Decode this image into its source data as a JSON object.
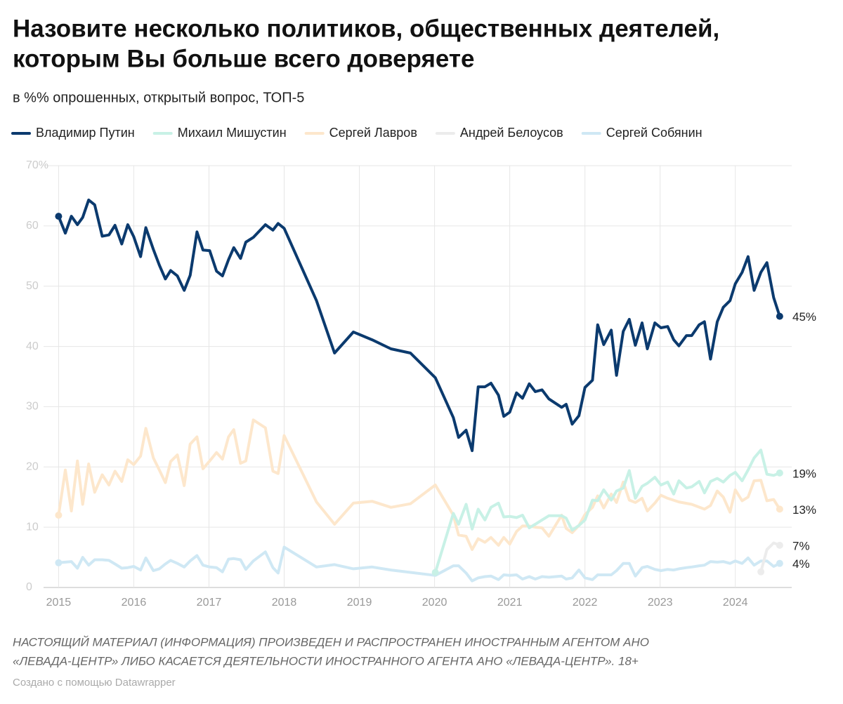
{
  "chart_data": {
    "type": "line",
    "title": [
      "Назовите несколько политиков, общественных деятелей,",
      "которым Вы больше всего доверяете"
    ],
    "subtitle": "в %% опрошенных, открытый вопрос, ТОП-5",
    "footnote": [
      "НАСТОЯЩИЙ МАТЕРИАЛ (ИНФОРМАЦИЯ) ПРОИЗВЕДЕН И РАСПРОСТРАНЕН ИНОСТРАННЫМ АГЕНТОМ АНО",
      "«ЛЕВАДА-ЦЕНТР» ЛИБО КАСАЕТСЯ ДЕЯТЕЛЬНОСТИ ИНОСТРАННОГО АГЕНТА АНО «ЛЕВАДА-ЦЕНТР». 18+"
    ],
    "credit": "Создано с помощью Datawrapper",
    "xlim": [
      2014.8,
      2024.75
    ],
    "xticks": [
      2015,
      2016,
      2017,
      2018,
      2019,
      2020,
      2021,
      2022,
      2023,
      2024
    ],
    "ylim": [
      0,
      70
    ],
    "yticks": [
      0,
      10,
      20,
      30,
      40,
      50,
      60,
      {
        "value": 70,
        "label": "70%"
      }
    ],
    "grid": true,
    "series": [
      {
        "name": "Владимир Путин",
        "color": "#0b3a6e",
        "end_label": "45%",
        "x": [
          2015.0,
          2015.09,
          2015.17,
          2015.25,
          2015.32,
          2015.4,
          2015.48,
          2015.58,
          2015.67,
          2015.75,
          2015.84,
          2015.92,
          2016.0,
          2016.09,
          2016.16,
          2016.26,
          2016.34,
          2016.42,
          2016.49,
          2016.58,
          2016.67,
          2016.75,
          2016.84,
          2016.92,
          2017.01,
          2017.1,
          2017.18,
          2017.26,
          2017.33,
          2017.42,
          2017.49,
          2017.59,
          2017.75,
          2017.85,
          2017.92,
          2018.0,
          2018.43,
          2018.67,
          2018.92,
          2019.17,
          2019.42,
          2019.68,
          2020.01,
          2020.25,
          2020.32,
          2020.42,
          2020.5,
          2020.58,
          2020.67,
          2020.75,
          2020.85,
          2020.92,
          2021.0,
          2021.09,
          2021.17,
          2021.26,
          2021.34,
          2021.43,
          2021.52,
          2021.69,
          2021.75,
          2021.83,
          2021.92,
          2022.0,
          2022.1,
          2022.17,
          2022.25,
          2022.35,
          2022.42,
          2022.51,
          2022.59,
          2022.67,
          2022.76,
          2022.83,
          2022.93,
          2023.01,
          2023.1,
          2023.18,
          2023.25,
          2023.35,
          2023.42,
          2023.52,
          2023.59,
          2023.67,
          2023.76,
          2023.84,
          2023.93,
          2024.0,
          2024.09,
          2024.17,
          2024.25,
          2024.34,
          2024.42,
          2024.51,
          2024.59
        ],
        "values": [
          61.6,
          58.8,
          61.6,
          60.2,
          61.4,
          64.3,
          63.5,
          58.3,
          58.5,
          60.1,
          57,
          60.2,
          58.2,
          54.9,
          59.7,
          56.1,
          53.5,
          51.2,
          52.6,
          51.7,
          49.3,
          51.8,
          59,
          56,
          55.9,
          52.5,
          51.7,
          54.4,
          56.4,
          54.6,
          57.3,
          58.1,
          60.2,
          59.3,
          60.4,
          59.6,
          47.6,
          38.9,
          42.4,
          41.1,
          39.6,
          38.9,
          34.8,
          28.2,
          24.9,
          26.1,
          22.7,
          33.3,
          33.3,
          33.9,
          31.9,
          28.4,
          29.1,
          32.3,
          31.4,
          33.8,
          32.5,
          32.8,
          31.3,
          29.9,
          30.4,
          27.1,
          28.5,
          33.2,
          34.4,
          43.6,
          40.3,
          42.7,
          35.2,
          42.5,
          44.5,
          40.2,
          43.9,
          39.6,
          43.9,
          43.1,
          43.3,
          41.1,
          40.1,
          41.8,
          41.8,
          43.6,
          44.1,
          37.9,
          44.1,
          46.5,
          47.6,
          50.4,
          52.3,
          54.9,
          49.3,
          52.3,
          53.9,
          48.1,
          45
        ]
      },
      {
        "name": "Михаил Мишустин",
        "color": "#c8f1e6",
        "end_label": "19%",
        "x": [
          2020.01,
          2020.25,
          2020.32,
          2020.42,
          2020.5,
          2020.58,
          2020.67,
          2020.75,
          2020.85,
          2020.92,
          2021.0,
          2021.09,
          2021.17,
          2021.26,
          2021.34,
          2021.43,
          2021.52,
          2021.69,
          2021.75,
          2021.83,
          2021.92,
          2022.0,
          2022.1,
          2022.17,
          2022.25,
          2022.35,
          2022.42,
          2022.51,
          2022.59,
          2022.67,
          2022.76,
          2022.83,
          2022.93,
          2023.01,
          2023.1,
          2023.18,
          2023.25,
          2023.35,
          2023.42,
          2023.52,
          2023.59,
          2023.67,
          2023.76,
          2023.84,
          2023.93,
          2024.0,
          2024.09,
          2024.17,
          2024.25,
          2024.34,
          2024.42,
          2024.51,
          2024.59
        ],
        "values": [
          2.5,
          12.3,
          10.5,
          13.8,
          9.7,
          13,
          11.2,
          13.3,
          14,
          11.7,
          11.8,
          11.6,
          12,
          9.9,
          10.5,
          11.2,
          11.9,
          11.9,
          11.5,
          9.5,
          10.3,
          11.2,
          14.5,
          14.4,
          16.2,
          14.5,
          16,
          16.5,
          19.4,
          14.8,
          16.8,
          17.3,
          18.3,
          17,
          17.5,
          15.5,
          17.7,
          16.5,
          16.7,
          17.6,
          15.7,
          17.6,
          18.1,
          17.5,
          18.6,
          19.1,
          17.7,
          19.5,
          21.5,
          22.8,
          18.8,
          18.6,
          19
        ]
      },
      {
        "name": "Сергей Лавров",
        "color": "#fde7cc",
        "end_label": "13%",
        "x": [
          2015.0,
          2015.09,
          2015.17,
          2015.25,
          2015.32,
          2015.4,
          2015.48,
          2015.58,
          2015.67,
          2015.75,
          2015.84,
          2015.92,
          2016.0,
          2016.09,
          2016.16,
          2016.26,
          2016.34,
          2016.42,
          2016.49,
          2016.58,
          2016.67,
          2016.75,
          2016.84,
          2016.92,
          2017.01,
          2017.1,
          2017.18,
          2017.26,
          2017.33,
          2017.42,
          2017.49,
          2017.59,
          2017.75,
          2017.85,
          2017.92,
          2018.0,
          2018.43,
          2018.67,
          2018.92,
          2019.17,
          2019.42,
          2019.68,
          2020.01,
          2020.25,
          2020.32,
          2020.42,
          2020.5,
          2020.58,
          2020.67,
          2020.75,
          2020.85,
          2020.92,
          2021.0,
          2021.09,
          2021.17,
          2021.26,
          2021.34,
          2021.43,
          2021.52,
          2021.69,
          2021.75,
          2021.83,
          2021.92,
          2022.0,
          2022.1,
          2022.17,
          2022.25,
          2022.35,
          2022.42,
          2022.51,
          2022.59,
          2022.67,
          2022.76,
          2022.83,
          2022.93,
          2023.01,
          2023.1,
          2023.25,
          2023.42,
          2023.59,
          2023.67,
          2023.76,
          2023.84,
          2023.93,
          2024.0,
          2024.09,
          2024.17,
          2024.25,
          2024.34,
          2024.42,
          2024.51,
          2024.59
        ],
        "values": [
          12,
          19.5,
          12.7,
          21,
          13.8,
          20.5,
          15.8,
          18.7,
          17,
          19.3,
          17.6,
          21.2,
          20.4,
          21.8,
          26.4,
          21.5,
          19.5,
          17.4,
          20.9,
          22,
          16.9,
          23.8,
          25,
          19.7,
          21,
          22.4,
          21.3,
          25,
          26.2,
          20.6,
          21,
          27.8,
          26.5,
          19.3,
          18.9,
          25.2,
          14.2,
          10.5,
          14,
          14.3,
          13.3,
          13.9,
          17,
          12,
          8.7,
          8.5,
          6.3,
          8.1,
          7.5,
          8.3,
          7,
          8.3,
          7.2,
          9.3,
          10.2,
          10.2,
          10,
          9.9,
          8.5,
          12,
          9.8,
          9.1,
          10.3,
          12.1,
          13.3,
          15.2,
          13.2,
          15.5,
          14.1,
          17.5,
          14.5,
          14.1,
          14.8,
          12.7,
          14,
          15.3,
          14.8,
          14.2,
          13.8,
          13,
          13.6,
          16,
          15,
          12.5,
          16.2,
          14.4,
          15,
          17.7,
          17.8,
          14.4,
          14.6,
          13
        ]
      },
      {
        "name": "Андрей Белоусов",
        "color": "#ececec",
        "end_label": "7%",
        "x": [
          2024.34,
          2024.42,
          2024.51,
          2024.59
        ],
        "values": [
          2.6,
          6.3,
          7.4,
          7
        ]
      },
      {
        "name": "Сергей Собянин",
        "color": "#cfe8f4",
        "end_label": "4%",
        "x": [
          2015.0,
          2015.09,
          2015.17,
          2015.25,
          2015.32,
          2015.4,
          2015.48,
          2015.58,
          2015.67,
          2015.75,
          2015.84,
          2015.92,
          2016.0,
          2016.09,
          2016.16,
          2016.26,
          2016.34,
          2016.42,
          2016.49,
          2016.58,
          2016.67,
          2016.75,
          2016.84,
          2016.92,
          2017.01,
          2017.1,
          2017.18,
          2017.26,
          2017.33,
          2017.42,
          2017.49,
          2017.59,
          2017.75,
          2017.85,
          2017.92,
          2018.0,
          2018.43,
          2018.67,
          2018.92,
          2019.17,
          2019.42,
          2019.68,
          2020.01,
          2020.25,
          2020.32,
          2020.42,
          2020.5,
          2020.58,
          2020.67,
          2020.75,
          2020.85,
          2020.92,
          2021.0,
          2021.09,
          2021.17,
          2021.26,
          2021.34,
          2021.43,
          2021.52,
          2021.69,
          2021.75,
          2021.83,
          2021.92,
          2022.0,
          2022.1,
          2022.17,
          2022.25,
          2022.35,
          2022.42,
          2022.51,
          2022.59,
          2022.67,
          2022.76,
          2022.83,
          2022.93,
          2023.01,
          2023.1,
          2023.18,
          2023.25,
          2023.35,
          2023.42,
          2023.52,
          2023.59,
          2023.67,
          2023.76,
          2023.84,
          2023.93,
          2024.0,
          2024.09,
          2024.17,
          2024.25,
          2024.34,
          2024.42,
          2024.51,
          2024.59
        ],
        "values": [
          4.1,
          4.2,
          4.3,
          3.2,
          5,
          3.7,
          4.6,
          4.6,
          4.5,
          3.9,
          3.2,
          3.3,
          3.5,
          2.9,
          4.9,
          2.8,
          3.1,
          3.9,
          4.5,
          4,
          3.4,
          4.4,
          5.3,
          3.7,
          3.4,
          3.3,
          2.6,
          4.7,
          4.8,
          4.6,
          3,
          4.4,
          5.9,
          3.3,
          2.4,
          6.7,
          3.4,
          3.8,
          3.1,
          3.4,
          2.9,
          2.5,
          2,
          3.6,
          3.6,
          2.4,
          1.1,
          1.6,
          1.8,
          1.9,
          1.3,
          2.1,
          2,
          2.1,
          1.4,
          1.8,
          1.4,
          1.8,
          1.7,
          1.9,
          1.4,
          1.6,
          2.9,
          1.6,
          1.3,
          2.1,
          2.1,
          2.1,
          2.8,
          4,
          4,
          1.9,
          3.3,
          3.5,
          3,
          2.8,
          3,
          2.9,
          3.1,
          3.3,
          3.4,
          3.6,
          3.7,
          4.3,
          4.2,
          4.3,
          4,
          4.4,
          4,
          4.9,
          3.7,
          4.4,
          4.4,
          3.5,
          4
        ]
      }
    ]
  }
}
